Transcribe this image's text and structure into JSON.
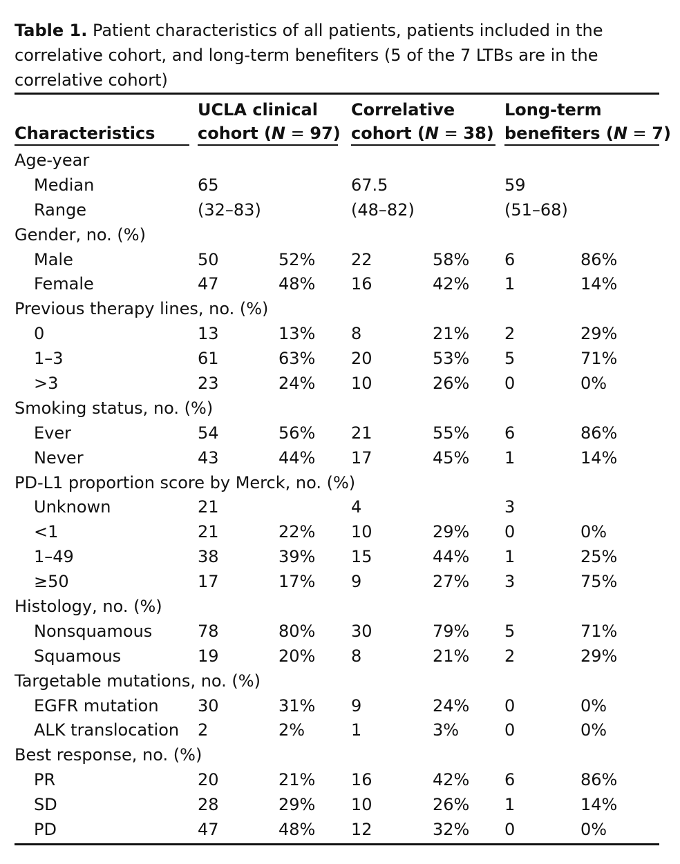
{
  "caption": {
    "label": "Table 1.",
    "text": "Patient characteristics of all patients, patients included in the correlative cohort, and long-term benefiters (5 of the 7 LTBs are in the correlative cohort)"
  },
  "header": {
    "characteristics": "Characteristics",
    "col1_line1": "UCLA clinical",
    "col1_line2_pre": "cohort (",
    "col1_n": "N",
    "col1_eq": " = ",
    "col1_value": "97)",
    "col2_line1": "Correlative",
    "col2_line2_pre": "cohort (",
    "col2_n": "N",
    "col2_eq": " = ",
    "col2_value": "38)",
    "col3_line1": "Long-term",
    "col3_line2_pre": "benefiters (",
    "col3_n": "N",
    "col3_eq": " = ",
    "col3_value": "7)"
  },
  "rows": [
    {
      "label": "Age-year",
      "section": true,
      "cells": [
        "",
        "",
        "",
        "",
        "",
        ""
      ]
    },
    {
      "label": "Median",
      "section": false,
      "cells": [
        "65",
        "",
        "67.5",
        "",
        "59",
        ""
      ]
    },
    {
      "label": "Range",
      "section": false,
      "cells": [
        "(32–83)",
        "",
        "(48–82)",
        "",
        "(51–68)",
        ""
      ]
    },
    {
      "label": "Gender, no. (%)",
      "section": true,
      "cells": [
        "",
        "",
        "",
        "",
        "",
        ""
      ]
    },
    {
      "label": "Male",
      "section": false,
      "cells": [
        "50",
        "52%",
        "22",
        "58%",
        "6",
        "86%"
      ]
    },
    {
      "label": "Female",
      "section": false,
      "cells": [
        "47",
        "48%",
        "16",
        "42%",
        "1",
        "14%"
      ]
    },
    {
      "label": "Previous therapy lines, no. (%)",
      "section": true,
      "cells": [
        "",
        "",
        "",
        "",
        "",
        ""
      ]
    },
    {
      "label": "0",
      "section": false,
      "cells": [
        "13",
        "13%",
        "8",
        "21%",
        "2",
        "29%"
      ]
    },
    {
      "label": "1–3",
      "section": false,
      "cells": [
        "61",
        "63%",
        "20",
        "53%",
        "5",
        "71%"
      ]
    },
    {
      "label": ">3",
      "section": false,
      "cells": [
        "23",
        "24%",
        "10",
        "26%",
        "0",
        "0%"
      ]
    },
    {
      "label": "Smoking status, no. (%)",
      "section": true,
      "cells": [
        "",
        "",
        "",
        "",
        "",
        ""
      ]
    },
    {
      "label": "Ever",
      "section": false,
      "cells": [
        "54",
        "56%",
        "21",
        "55%",
        "6",
        "86%"
      ]
    },
    {
      "label": "Never",
      "section": false,
      "cells": [
        "43",
        "44%",
        "17",
        "45%",
        "1",
        "14%"
      ]
    },
    {
      "label": "PD-L1 proportion score by Merck, no. (%)",
      "section": true,
      "cells": [
        "",
        "",
        "",
        "",
        "",
        ""
      ]
    },
    {
      "label": "Unknown",
      "section": false,
      "cells": [
        "21",
        "",
        "4",
        "",
        "3",
        ""
      ]
    },
    {
      "label": "<1",
      "section": false,
      "cells": [
        "21",
        "22%",
        "10",
        "29%",
        "0",
        "0%"
      ]
    },
    {
      "label": "1–49",
      "section": false,
      "cells": [
        "38",
        "39%",
        "15",
        "44%",
        "1",
        "25%"
      ]
    },
    {
      "label": "≥50",
      "section": false,
      "cells": [
        "17",
        "17%",
        "9",
        "27%",
        "3",
        "75%"
      ]
    },
    {
      "label": "Histology, no. (%)",
      "section": true,
      "cells": [
        "",
        "",
        "",
        "",
        "",
        ""
      ]
    },
    {
      "label": "Nonsquamous",
      "section": false,
      "cells": [
        "78",
        "80%",
        "30",
        "79%",
        "5",
        "71%"
      ]
    },
    {
      "label": "Squamous",
      "section": false,
      "cells": [
        "19",
        "20%",
        "8",
        "21%",
        "2",
        "29%"
      ]
    },
    {
      "label": "Targetable mutations, no. (%)",
      "section": true,
      "cells": [
        "",
        "",
        "",
        "",
        "",
        ""
      ]
    },
    {
      "label": "EGFR mutation",
      "section": false,
      "cells": [
        "30",
        "31%",
        "9",
        "24%",
        "0",
        "0%"
      ]
    },
    {
      "label": "ALK translocation",
      "section": false,
      "cells": [
        "2",
        "2%",
        "1",
        "3%",
        "0",
        "0%"
      ]
    },
    {
      "label": "Best response, no. (%)",
      "section": true,
      "cells": [
        "",
        "",
        "",
        "",
        "",
        ""
      ]
    },
    {
      "label": "PR",
      "section": false,
      "cells": [
        "20",
        "21%",
        "16",
        "42%",
        "6",
        "86%"
      ]
    },
    {
      "label": "SD",
      "section": false,
      "cells": [
        "28",
        "29%",
        "10",
        "26%",
        "1",
        "14%"
      ]
    },
    {
      "label": "PD",
      "section": false,
      "cells": [
        "47",
        "48%",
        "12",
        "32%",
        "0",
        "0%"
      ]
    }
  ]
}
